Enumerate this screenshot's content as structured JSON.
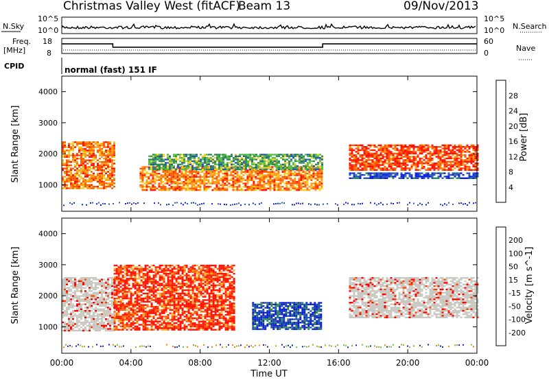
{
  "header": {
    "title": "Christmas Valley West (fitACF)",
    "beam": "Beam 13",
    "date": "09/Nov/2013"
  },
  "strips": {
    "nsky": {
      "label": "N.Sky",
      "left_ticks": [
        "10^5",
        "10^0"
      ],
      "right_ticks": [
        "10^5",
        "10^0"
      ],
      "right_label": "N.Search"
    },
    "freq": {
      "label_line1": "Freq.",
      "label_line2": "[MHz]",
      "left_ticks": [
        "18",
        "8"
      ],
      "right_ticks": [
        "60",
        "0"
      ],
      "right_label": "Nave",
      "steps": [
        {
          "start": "00:00",
          "end": "02:57",
          "freq_mhz": 14.4
        },
        {
          "start": "02:57",
          "end": "15:05",
          "freq_mhz": 12.2
        },
        {
          "start": "15:05",
          "end": "24:00",
          "freq_mhz": 14.4
        }
      ]
    },
    "cpid": {
      "label": "CPID",
      "text": "normal (fast) 151 IF"
    }
  },
  "chart_data": [
    {
      "type": "heatmap",
      "title": "",
      "xlabel": "",
      "ylabel": "Slant Range [km]",
      "xlim": [
        "00:00",
        "24:00"
      ],
      "ylim": [
        150,
        4500
      ],
      "y_ticks": [
        1000,
        2000,
        3000,
        4000
      ],
      "colorbar": {
        "label": "Power [dB]",
        "ticks": [
          4,
          8,
          12,
          16,
          20,
          24,
          28
        ],
        "colors": [
          "#0b1ee6",
          "#2a55b8",
          "#2e8a5a",
          "#58c040",
          "#f0d020",
          "#ff9a10",
          "#ff5a00",
          "#ff1000"
        ]
      },
      "echo_regions": [
        {
          "name": "morning red band",
          "start_h": 0.0,
          "end_h": 3.0,
          "range_km": [
            900,
            2400
          ],
          "value_db": 26
        },
        {
          "name": "main dayside band",
          "start_h": 4.5,
          "end_h": 15.0,
          "range_km": [
            850,
            1600
          ],
          "value_db": 27
        },
        {
          "name": "upper green band",
          "start_h": 5.0,
          "end_h": 15.0,
          "range_km": [
            1500,
            2000
          ],
          "value_db": 12
        },
        {
          "name": "evening band",
          "start_h": 16.6,
          "end_h": 24.0,
          "range_km": [
            1500,
            2300
          ],
          "value_db": 28
        },
        {
          "name": "evening lower band",
          "start_h": 16.6,
          "end_h": 24.0,
          "range_km": [
            1200,
            1400
          ],
          "value_db": 6
        }
      ]
    },
    {
      "type": "heatmap",
      "title": "",
      "xlabel": "Time UT",
      "ylabel": "Slant Range [km]",
      "xlim": [
        "00:00",
        "24:00"
      ],
      "ylim": [
        150,
        4500
      ],
      "y_ticks": [
        1000,
        2000,
        3000,
        4000
      ],
      "x_ticks": [
        "00:00",
        "04:00",
        "08:00",
        "12:00",
        "16:00",
        "20:00",
        "00:00"
      ],
      "colorbar": {
        "label": "Velocity [m s^-1]",
        "ticks": [
          "200",
          "100",
          "50",
          "15",
          "-15",
          "-50",
          "-100",
          "-200"
        ],
        "colors": [
          "#0a20c8",
          "#1a50b0",
          "#2f8a4a",
          "#70c040",
          "#c8c8c0",
          "#ffb030",
          "#ff8000",
          "#ff4000",
          "#ff0000"
        ]
      },
      "echo_regions": [
        {
          "name": "ground scatter morning",
          "start_h": 0.0,
          "end_h": 3.0,
          "range_km": [
            900,
            2600
          ],
          "value_ms": 0
        },
        {
          "name": "westward flow",
          "start_h": 3.0,
          "end_h": 10.0,
          "range_km": [
            900,
            3000
          ],
          "value_ms": -200
        },
        {
          "name": "eastward flow",
          "start_h": 11.0,
          "end_h": 15.0,
          "range_km": [
            900,
            1800
          ],
          "value_ms": 200
        },
        {
          "name": "evening ground scatter",
          "start_h": 16.6,
          "end_h": 24.0,
          "range_km": [
            1300,
            2600
          ],
          "value_ms": 0
        }
      ]
    }
  ]
}
